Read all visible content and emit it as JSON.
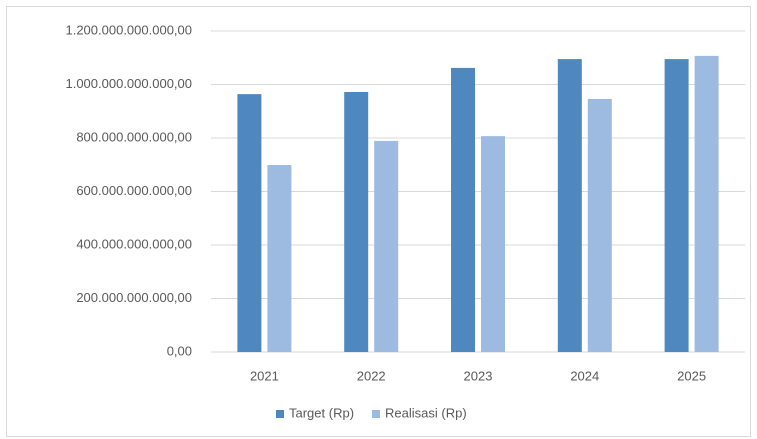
{
  "chart_data": {
    "type": "bar",
    "categories": [
      "2021",
      "2022",
      "2023",
      "2024",
      "2025"
    ],
    "series": [
      {
        "name": "Target (Rp)",
        "color": "#4f88bf",
        "values": [
          964000000000,
          972000000000,
          1062000000000,
          1095000000000,
          1095000000000
        ]
      },
      {
        "name": "Realisasi (Rp)",
        "color": "#9dbbe0",
        "values": [
          699000000000,
          789000000000,
          807000000000,
          946000000000,
          1107000000000
        ]
      }
    ],
    "ylim": [
      0,
      1200000000000
    ],
    "yticks": [
      {
        "value": 0,
        "label": "0,00"
      },
      {
        "value": 200000000000,
        "label": "200.000.000.000,00"
      },
      {
        "value": 400000000000,
        "label": "400.000.000.000,00"
      },
      {
        "value": 600000000000,
        "label": "600.000.000.000,00"
      },
      {
        "value": 800000000000,
        "label": "800.000.000.000,00"
      },
      {
        "value": 1000000000000,
        "label": "1.000.000.000.000,00"
      },
      {
        "value": 1200000000000,
        "label": "1.200.000.000.000,00"
      }
    ],
    "grid": true,
    "legend": "bottom"
  }
}
